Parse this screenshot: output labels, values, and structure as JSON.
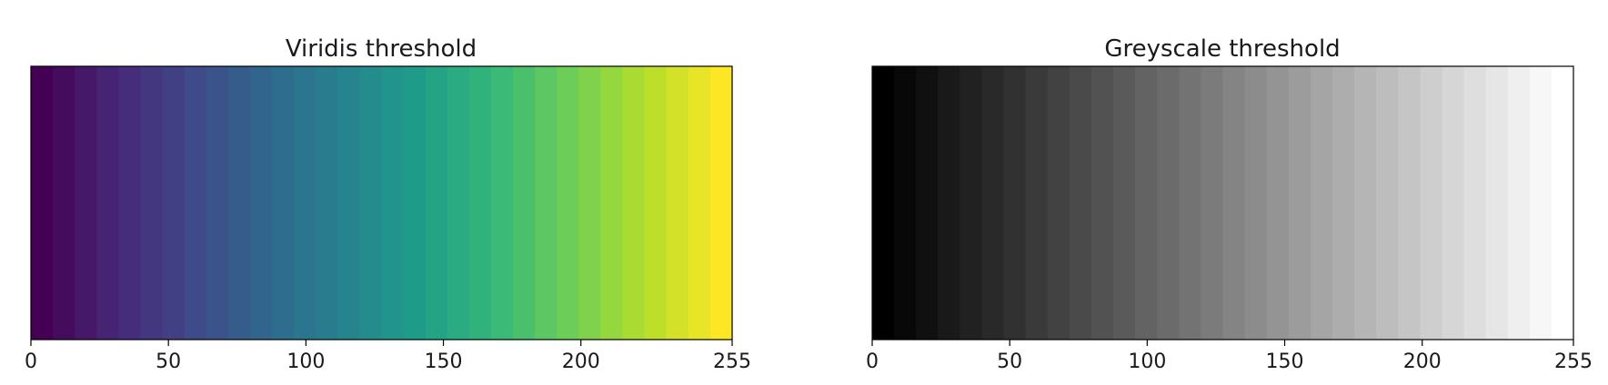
{
  "chart_data": [
    {
      "type": "heatmap",
      "title": "Viridis threshold",
      "colormap": "viridis",
      "xlim": [
        0,
        255
      ],
      "xticks": [
        0,
        50,
        100,
        150,
        200,
        255
      ],
      "xtick_labels": [
        "0",
        "50",
        "100",
        "150",
        "200",
        "255"
      ],
      "yticks": [],
      "bands": 32,
      "stops": [
        "#440154",
        "#482878",
        "#3e4989",
        "#31688e",
        "#26828e",
        "#1f9e89",
        "#35b779",
        "#6ece58",
        "#b5de2b",
        "#fde725"
      ],
      "grid": false
    },
    {
      "type": "heatmap",
      "title": "Greyscale threshold",
      "colormap": "grey",
      "xlim": [
        0,
        255
      ],
      "xticks": [
        0,
        50,
        100,
        150,
        200,
        255
      ],
      "xtick_labels": [
        "0",
        "50",
        "100",
        "150",
        "200",
        "255"
      ],
      "yticks": [],
      "bands": 32,
      "stops": [
        "#000000",
        "#ffffff"
      ],
      "grid": false
    }
  ]
}
